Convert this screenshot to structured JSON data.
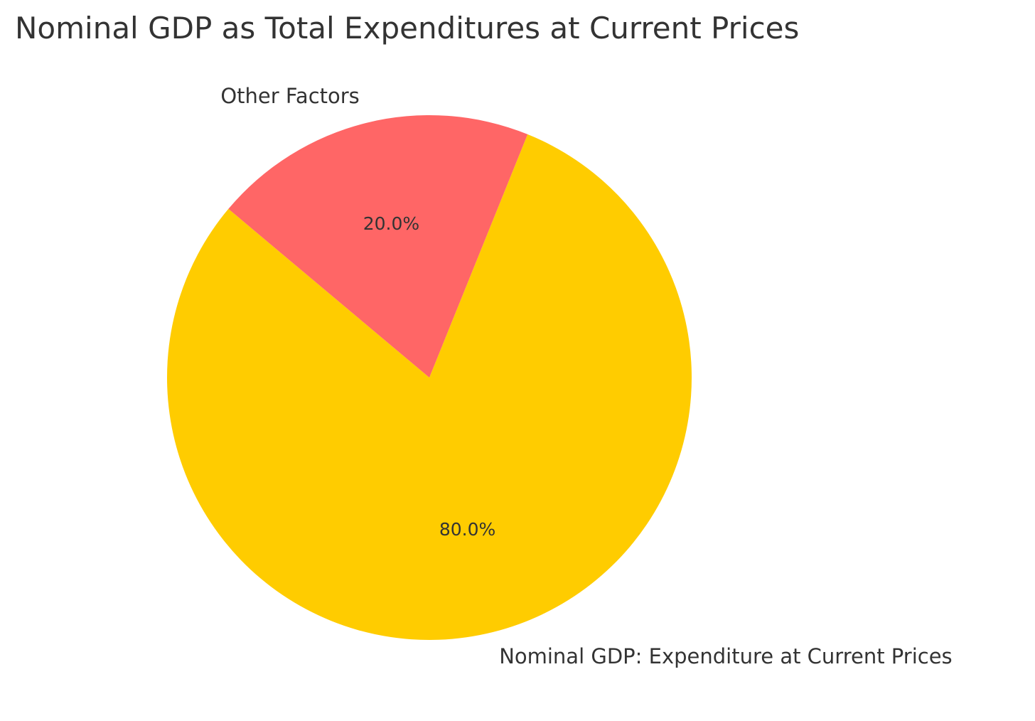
{
  "chart_data": {
    "type": "pie",
    "title": "Nominal GDP as Total Expenditures at Current Prices",
    "slices": [
      {
        "label": "Nominal GDP: Expenditure at Current Prices",
        "value": 80.0,
        "pct_label": "80.0%",
        "color": "#FFCC00"
      },
      {
        "label": "Other Factors",
        "value": 20.0,
        "pct_label": "20.0%",
        "color": "#FF6666"
      }
    ],
    "start_angle_deg": 140,
    "direction": "counterclockwise"
  }
}
